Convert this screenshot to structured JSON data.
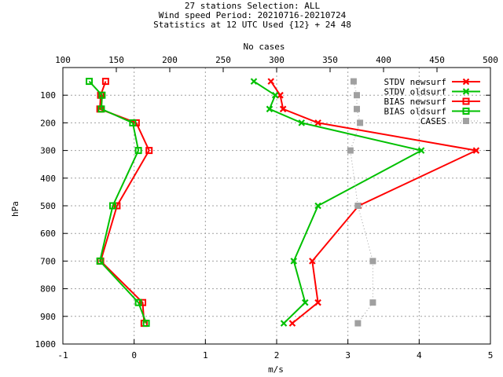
{
  "chart_data": {
    "type": "line",
    "title_lines": [
      "27 stations Selection: ALL",
      "Wind speed  Period: 20210716-20210724",
      "Statistics at 12 UTC  Used {12} + 24 48"
    ],
    "xlabel": "m/s",
    "ylabel": "hPa",
    "x2label": "No cases",
    "xlim": [
      -1,
      5
    ],
    "ylim": [
      1000,
      0
    ],
    "x2lim": [
      100,
      500
    ],
    "xticks": [
      "-1",
      "0",
      "1",
      "2",
      "3",
      "4",
      "5"
    ],
    "yticks": [
      "100",
      "200",
      "300",
      "400",
      "500",
      "600",
      "700",
      "800",
      "900",
      "1000"
    ],
    "x2ticks": [
      "100",
      "150",
      "200",
      "250",
      "300",
      "350",
      "400",
      "450",
      "500"
    ],
    "grid": true,
    "legend_position": "top-right",
    "series": [
      {
        "name": "STDV newsurf",
        "color": "#ff0000",
        "marker": "x",
        "axis": "bottom",
        "x": [
          1.92,
          2.05,
          2.09,
          2.58,
          4.8,
          3.15,
          2.5,
          2.58,
          2.22
        ],
        "y": [
          50,
          100,
          150,
          200,
          300,
          500,
          700,
          850,
          925
        ]
      },
      {
        "name": "STDV oldsurf",
        "color": "#00c000",
        "marker": "x",
        "axis": "bottom",
        "x": [
          1.68,
          1.98,
          1.9,
          2.35,
          4.03,
          2.58,
          2.24,
          2.4,
          2.1
        ],
        "y": [
          50,
          100,
          150,
          200,
          300,
          500,
          700,
          850,
          925
        ]
      },
      {
        "name": "BIAS newsurf",
        "color": "#ff0000",
        "marker": "square",
        "axis": "bottom",
        "x": [
          -0.4,
          -0.47,
          -0.48,
          0.03,
          0.21,
          -0.24,
          -0.47,
          0.12,
          0.14
        ],
        "y": [
          50,
          100,
          150,
          200,
          300,
          500,
          700,
          850,
          925
        ]
      },
      {
        "name": "BIAS oldsurf",
        "color": "#00c000",
        "marker": "square",
        "axis": "bottom",
        "x": [
          -0.63,
          -0.45,
          -0.46,
          -0.02,
          0.06,
          -0.3,
          -0.48,
          0.06,
          0.17
        ],
        "y": [
          50,
          100,
          150,
          200,
          300,
          500,
          700,
          850,
          925
        ]
      },
      {
        "name": "CASES",
        "color": "#a0a0a0",
        "marker": "filled-square",
        "axis": "top",
        "x": [
          372,
          375,
          375,
          378,
          369,
          376,
          390,
          390,
          376
        ],
        "y": [
          50,
          100,
          150,
          200,
          300,
          500,
          700,
          850,
          925
        ]
      }
    ]
  }
}
